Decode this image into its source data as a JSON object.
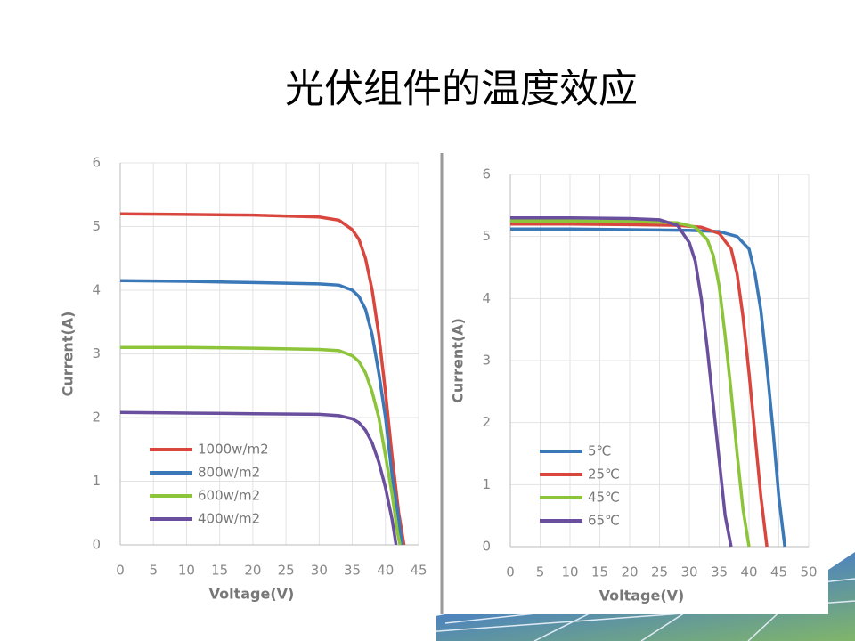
{
  "title": "光伏组件的温度效应",
  "chart_data": [
    {
      "type": "line",
      "xlabel": "Voltage(V)",
      "ylabel": "Current(A)",
      "xlim": [
        0,
        45
      ],
      "xticks": [
        0,
        5,
        10,
        15,
        20,
        25,
        30,
        35,
        40,
        45
      ],
      "ylim": [
        0,
        6
      ],
      "yticks": [
        0,
        1,
        2,
        3,
        4,
        5,
        6
      ],
      "grid": true,
      "legend": "lower left",
      "series": [
        {
          "name": "1000w/m2",
          "color": "#d9463e",
          "x": [
            0,
            10,
            20,
            30,
            33,
            35,
            36,
            37,
            38,
            39,
            40,
            41,
            42,
            42.8
          ],
          "values": [
            5.2,
            5.19,
            5.18,
            5.15,
            5.1,
            4.95,
            4.8,
            4.5,
            4.0,
            3.3,
            2.4,
            1.4,
            0.5,
            0
          ]
        },
        {
          "name": "800w/m2",
          "color": "#3a78b8",
          "x": [
            0,
            10,
            20,
            30,
            33,
            35,
            36,
            37,
            38,
            39,
            40,
            41,
            42,
            42.5
          ],
          "values": [
            4.15,
            4.14,
            4.12,
            4.1,
            4.08,
            4.0,
            3.9,
            3.7,
            3.3,
            2.7,
            2.0,
            1.1,
            0.4,
            0
          ]
        },
        {
          "name": "600w/m2",
          "color": "#8cc43a",
          "x": [
            0,
            10,
            20,
            30,
            33,
            35,
            36,
            37,
            38,
            39,
            40,
            41,
            41.8,
            42.2
          ],
          "values": [
            3.1,
            3.1,
            3.09,
            3.07,
            3.05,
            2.97,
            2.88,
            2.7,
            2.4,
            2.0,
            1.4,
            0.8,
            0.2,
            0
          ]
        },
        {
          "name": "400w/m2",
          "color": "#6a4f9e",
          "x": [
            0,
            10,
            20,
            30,
            33,
            35,
            36,
            37,
            38,
            39,
            40,
            41,
            41.6
          ],
          "values": [
            2.08,
            2.07,
            2.06,
            2.05,
            2.03,
            1.98,
            1.92,
            1.8,
            1.6,
            1.3,
            0.9,
            0.4,
            0
          ]
        }
      ]
    },
    {
      "type": "line",
      "xlabel": "Voltage(V)",
      "ylabel": "Current(A)",
      "xlim": [
        0,
        50
      ],
      "xticks": [
        0,
        5,
        10,
        15,
        20,
        25,
        30,
        35,
        40,
        45,
        50
      ],
      "ylim": [
        0,
        6
      ],
      "yticks": [
        0,
        1,
        2,
        3,
        4,
        5,
        6
      ],
      "grid": true,
      "legend": "lower left",
      "series": [
        {
          "name": "5℃",
          "color": "#3a78b8",
          "x": [
            0,
            10,
            20,
            30,
            35,
            38,
            40,
            41,
            42,
            43,
            44,
            45,
            46
          ],
          "values": [
            5.12,
            5.12,
            5.11,
            5.1,
            5.08,
            5.0,
            4.8,
            4.4,
            3.8,
            2.9,
            1.9,
            0.8,
            0
          ]
        },
        {
          "name": "25℃",
          "color": "#d9463e",
          "x": [
            0,
            10,
            20,
            28,
            32,
            35,
            37,
            38,
            39,
            40,
            41,
            42,
            43
          ],
          "values": [
            5.2,
            5.2,
            5.19,
            5.18,
            5.15,
            5.05,
            4.8,
            4.4,
            3.7,
            2.8,
            1.8,
            0.8,
            0
          ]
        },
        {
          "name": "45℃",
          "color": "#8cc43a",
          "x": [
            0,
            10,
            20,
            28,
            31,
            33,
            34,
            35,
            36,
            37,
            38,
            39,
            40
          ],
          "values": [
            5.25,
            5.25,
            5.24,
            5.22,
            5.15,
            4.95,
            4.7,
            4.2,
            3.4,
            2.5,
            1.5,
            0.6,
            0
          ]
        },
        {
          "name": "65℃",
          "color": "#6a4f9e",
          "x": [
            0,
            10,
            20,
            25,
            28,
            30,
            31,
            32,
            33,
            34,
            35,
            36,
            37
          ],
          "values": [
            5.3,
            5.3,
            5.29,
            5.27,
            5.18,
            4.9,
            4.6,
            4.0,
            3.2,
            2.3,
            1.4,
            0.5,
            0
          ]
        }
      ]
    }
  ]
}
